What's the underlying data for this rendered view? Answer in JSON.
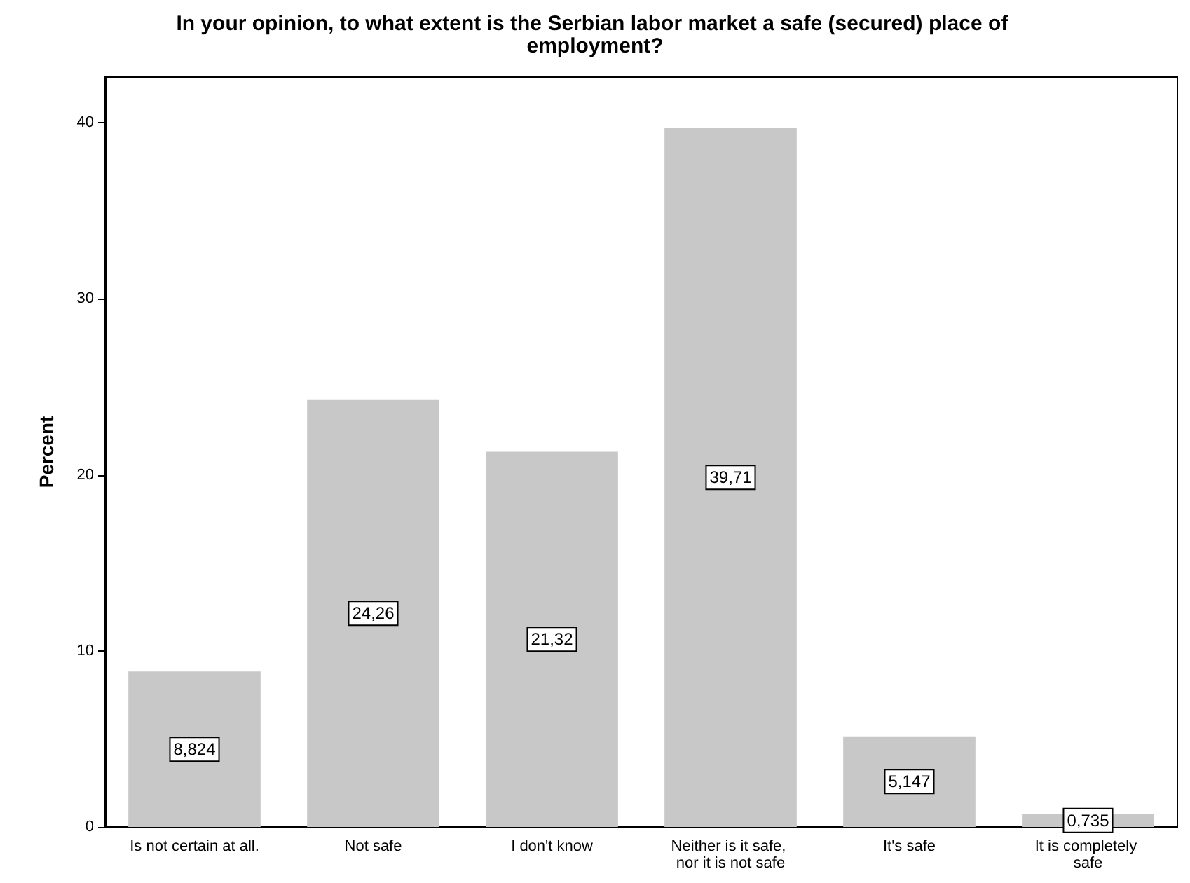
{
  "chart_data": {
    "type": "bar",
    "title": "In your opinion, to what extent is the Serbian labor market a safe (secured) place of employment?",
    "ylabel": "Percent",
    "categories": [
      "Is not certain at all.",
      "Not safe",
      "I don't know",
      "Neither is it safe, nor it is not safe",
      "It's safe",
      "It is completely safe"
    ],
    "values": [
      8.824,
      24.26,
      21.32,
      39.71,
      5.147,
      0.735
    ],
    "value_labels": [
      "8,824",
      "24,26",
      "21,32",
      "39,71",
      "5,147",
      "0,735"
    ],
    "color": "#c8c8c8",
    "ylim": [
      0,
      42.6
    ],
    "yticks": [
      0,
      10,
      20,
      30,
      40
    ],
    "grid": false
  }
}
